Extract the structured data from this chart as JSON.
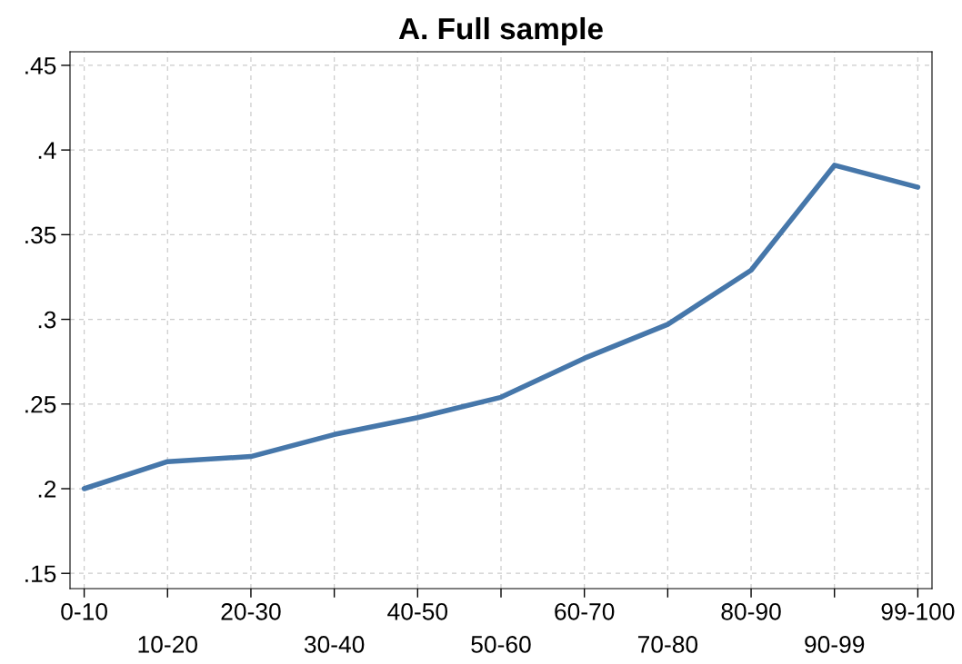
{
  "chart_data": {
    "type": "line",
    "title": "A. Full sample",
    "categories": [
      "0-10",
      "10-20",
      "20-30",
      "30-40",
      "40-50",
      "50-60",
      "60-70",
      "70-80",
      "80-90",
      "90-99",
      "99-100"
    ],
    "series": [
      {
        "color": "#4677aa",
        "values": [
          0.2,
          0.216,
          0.219,
          0.232,
          0.242,
          0.254,
          0.277,
          0.297,
          0.329,
          0.391,
          0.378
        ]
      }
    ],
    "ylim": [
      0.141,
      0.458
    ],
    "yticks": [
      {
        "value": 0.15,
        "label": ".15"
      },
      {
        "value": 0.2,
        "label": ".2"
      },
      {
        "value": 0.25,
        "label": ".25"
      },
      {
        "value": 0.3,
        "label": ".3"
      },
      {
        "value": 0.35,
        "label": ".35"
      },
      {
        "value": 0.4,
        "label": ".4"
      },
      {
        "value": 0.45,
        "label": ".45"
      }
    ],
    "grid": true,
    "marker": "none",
    "line_style": "solid"
  }
}
